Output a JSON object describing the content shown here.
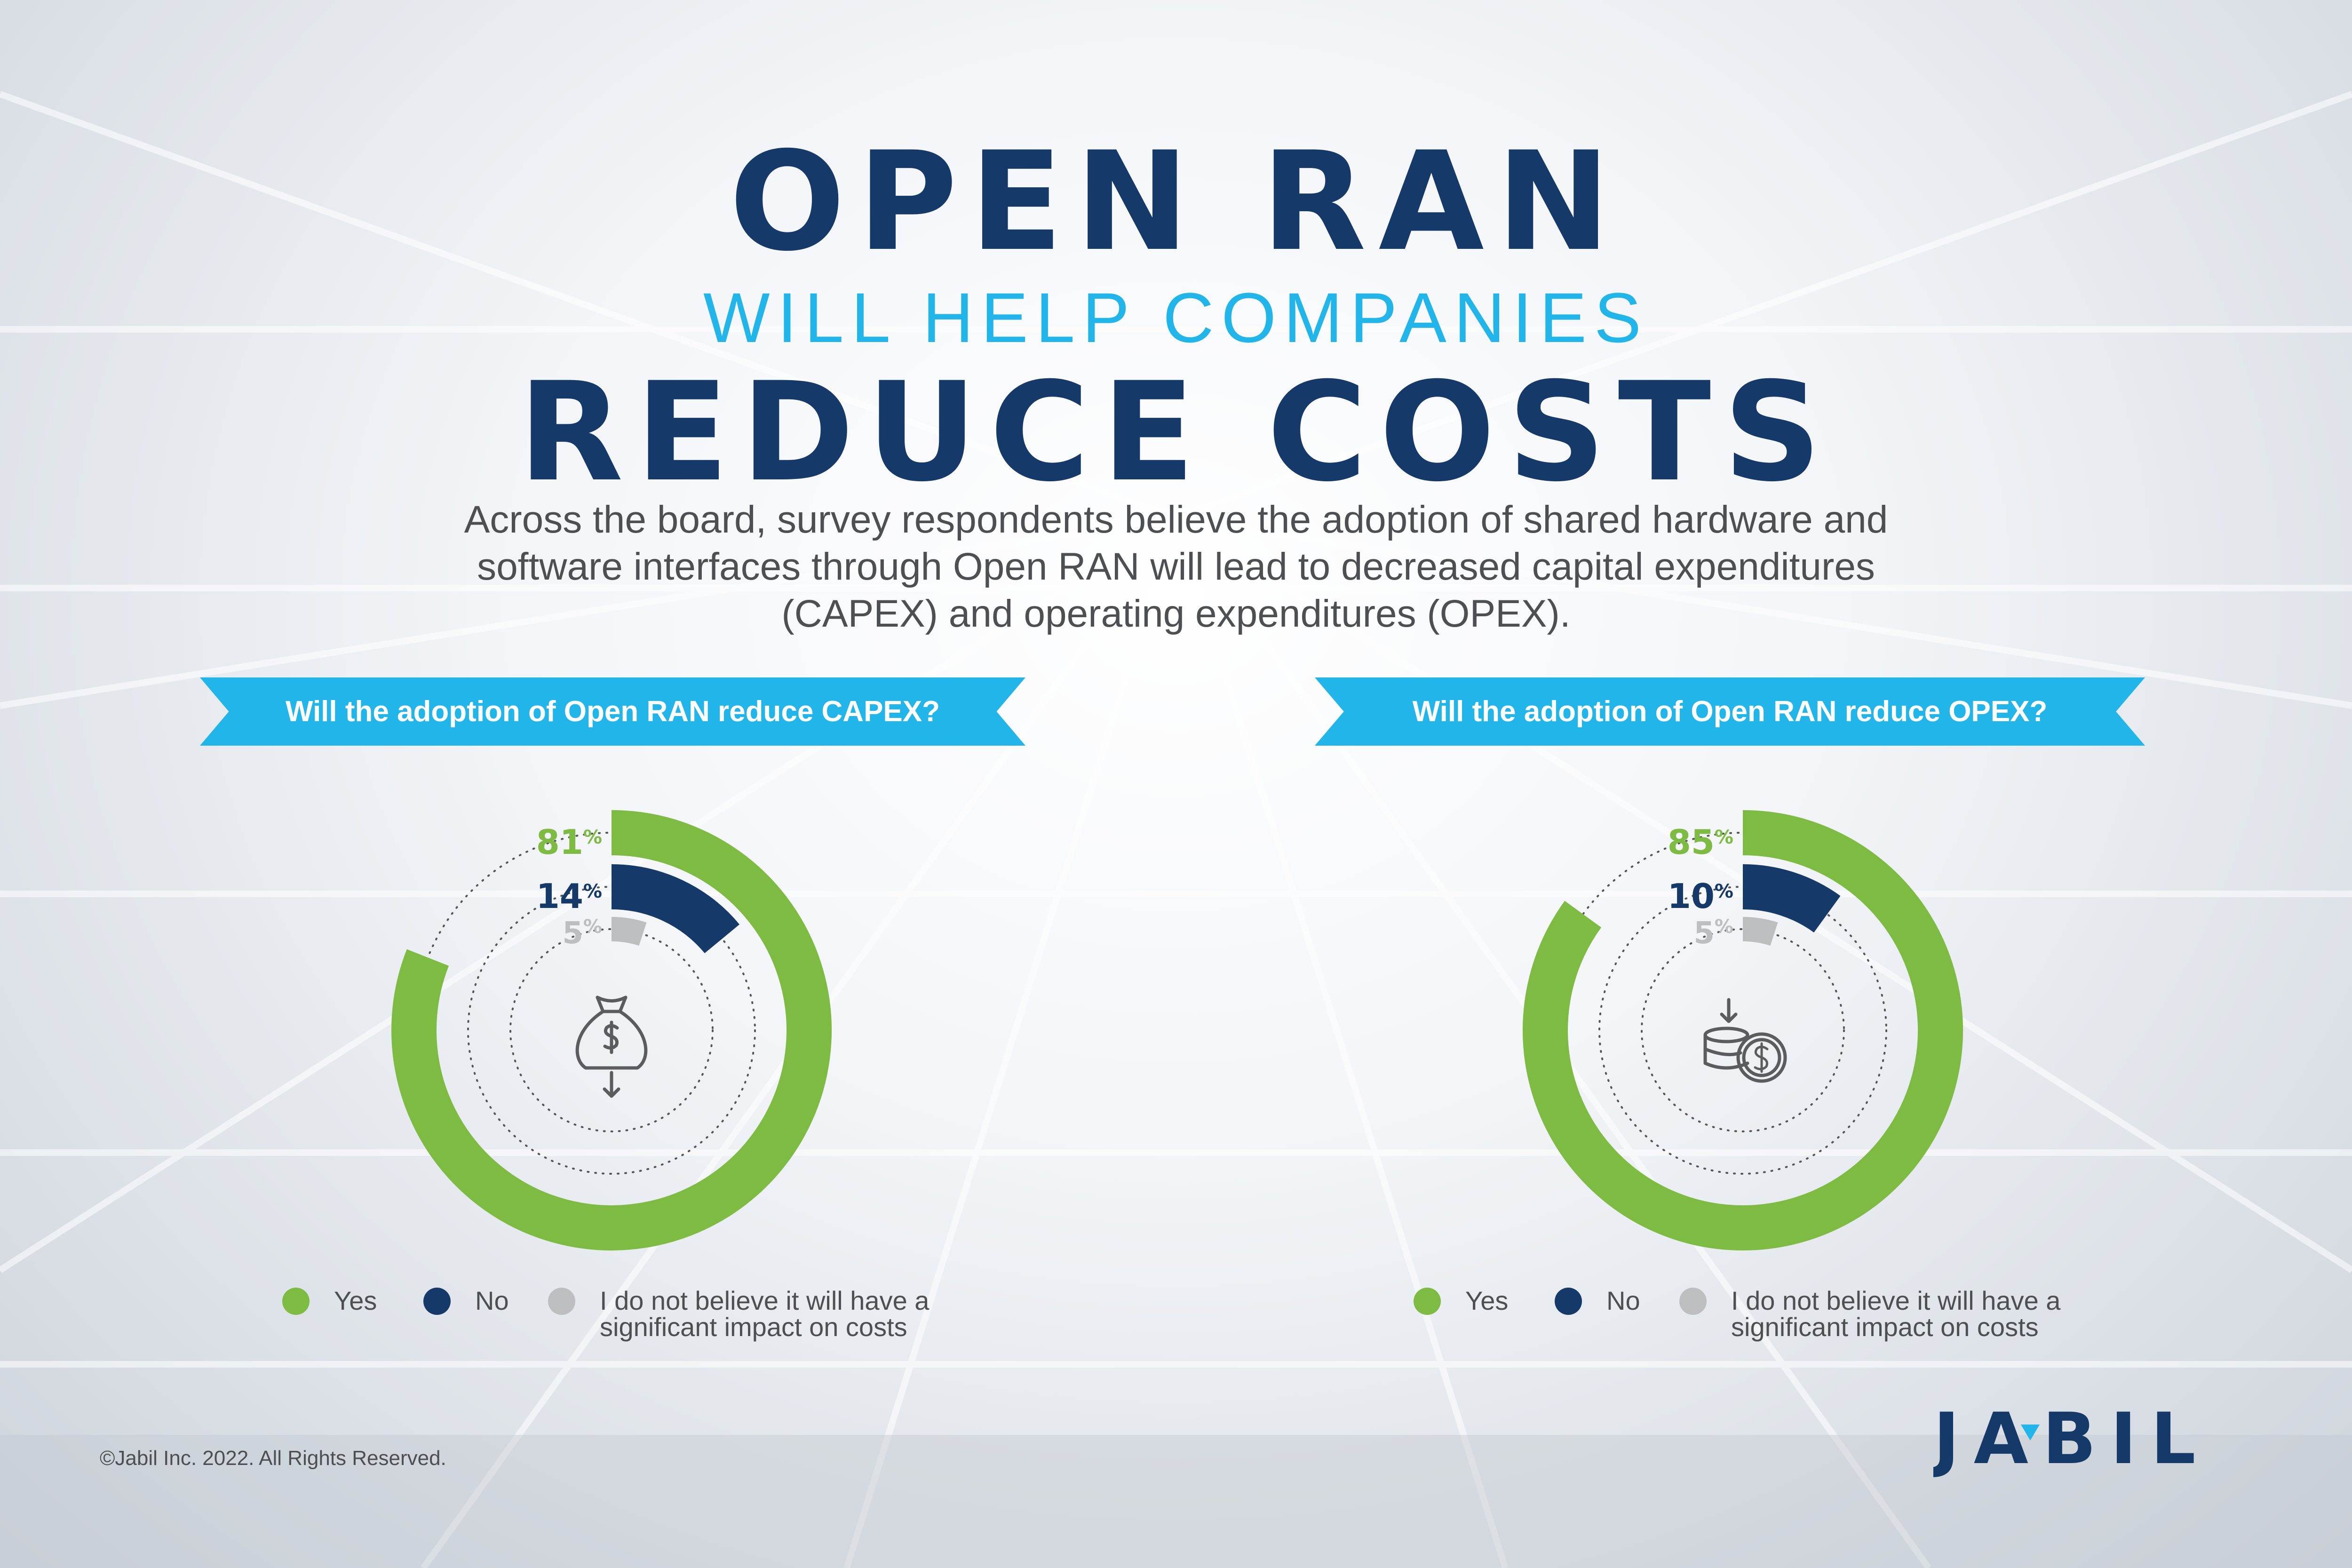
{
  "title": {
    "line1": "OPEN RAN",
    "line2": "WILL HELP COMPANIES",
    "line3": "REDUCE COSTS"
  },
  "intro": "Across the board, survey respondents believe the adoption of shared hardware and software interfaces through Open RAN will lead to decreased capital expenditures (CAPEX) and operating expenditures (OPEX).",
  "colors": {
    "navy": "#153968",
    "cyan": "#22b5ea",
    "yes": "#7dbb42",
    "no": "#153968",
    "neutral": "#bcbec0"
  },
  "chart_data": [
    {
      "type": "pie",
      "title": "Will the adoption of Open RAN reduce CAPEX?",
      "icon": "money-bag-down-icon",
      "slices": [
        {
          "name": "Yes",
          "value": 81,
          "label": "81",
          "unit": "%"
        },
        {
          "name": "No",
          "value": 14,
          "label": "14",
          "unit": "%"
        },
        {
          "name": "I do not believe it will have a significant impact on costs",
          "value": 5,
          "label": "5",
          "unit": "%"
        }
      ]
    },
    {
      "type": "pie",
      "title": "Will the adoption of Open RAN reduce OPEX?",
      "icon": "coins-down-icon",
      "slices": [
        {
          "name": "Yes",
          "value": 85,
          "label": "85",
          "unit": "%"
        },
        {
          "name": "No",
          "value": 10,
          "label": "10",
          "unit": "%"
        },
        {
          "name": "I do not believe it will have a significant impact on costs",
          "value": 5,
          "label": "5",
          "unit": "%"
        }
      ]
    }
  ],
  "copyright": "©Jabil Inc. 2022. All Rights Reserved.",
  "logo": "JABIL"
}
